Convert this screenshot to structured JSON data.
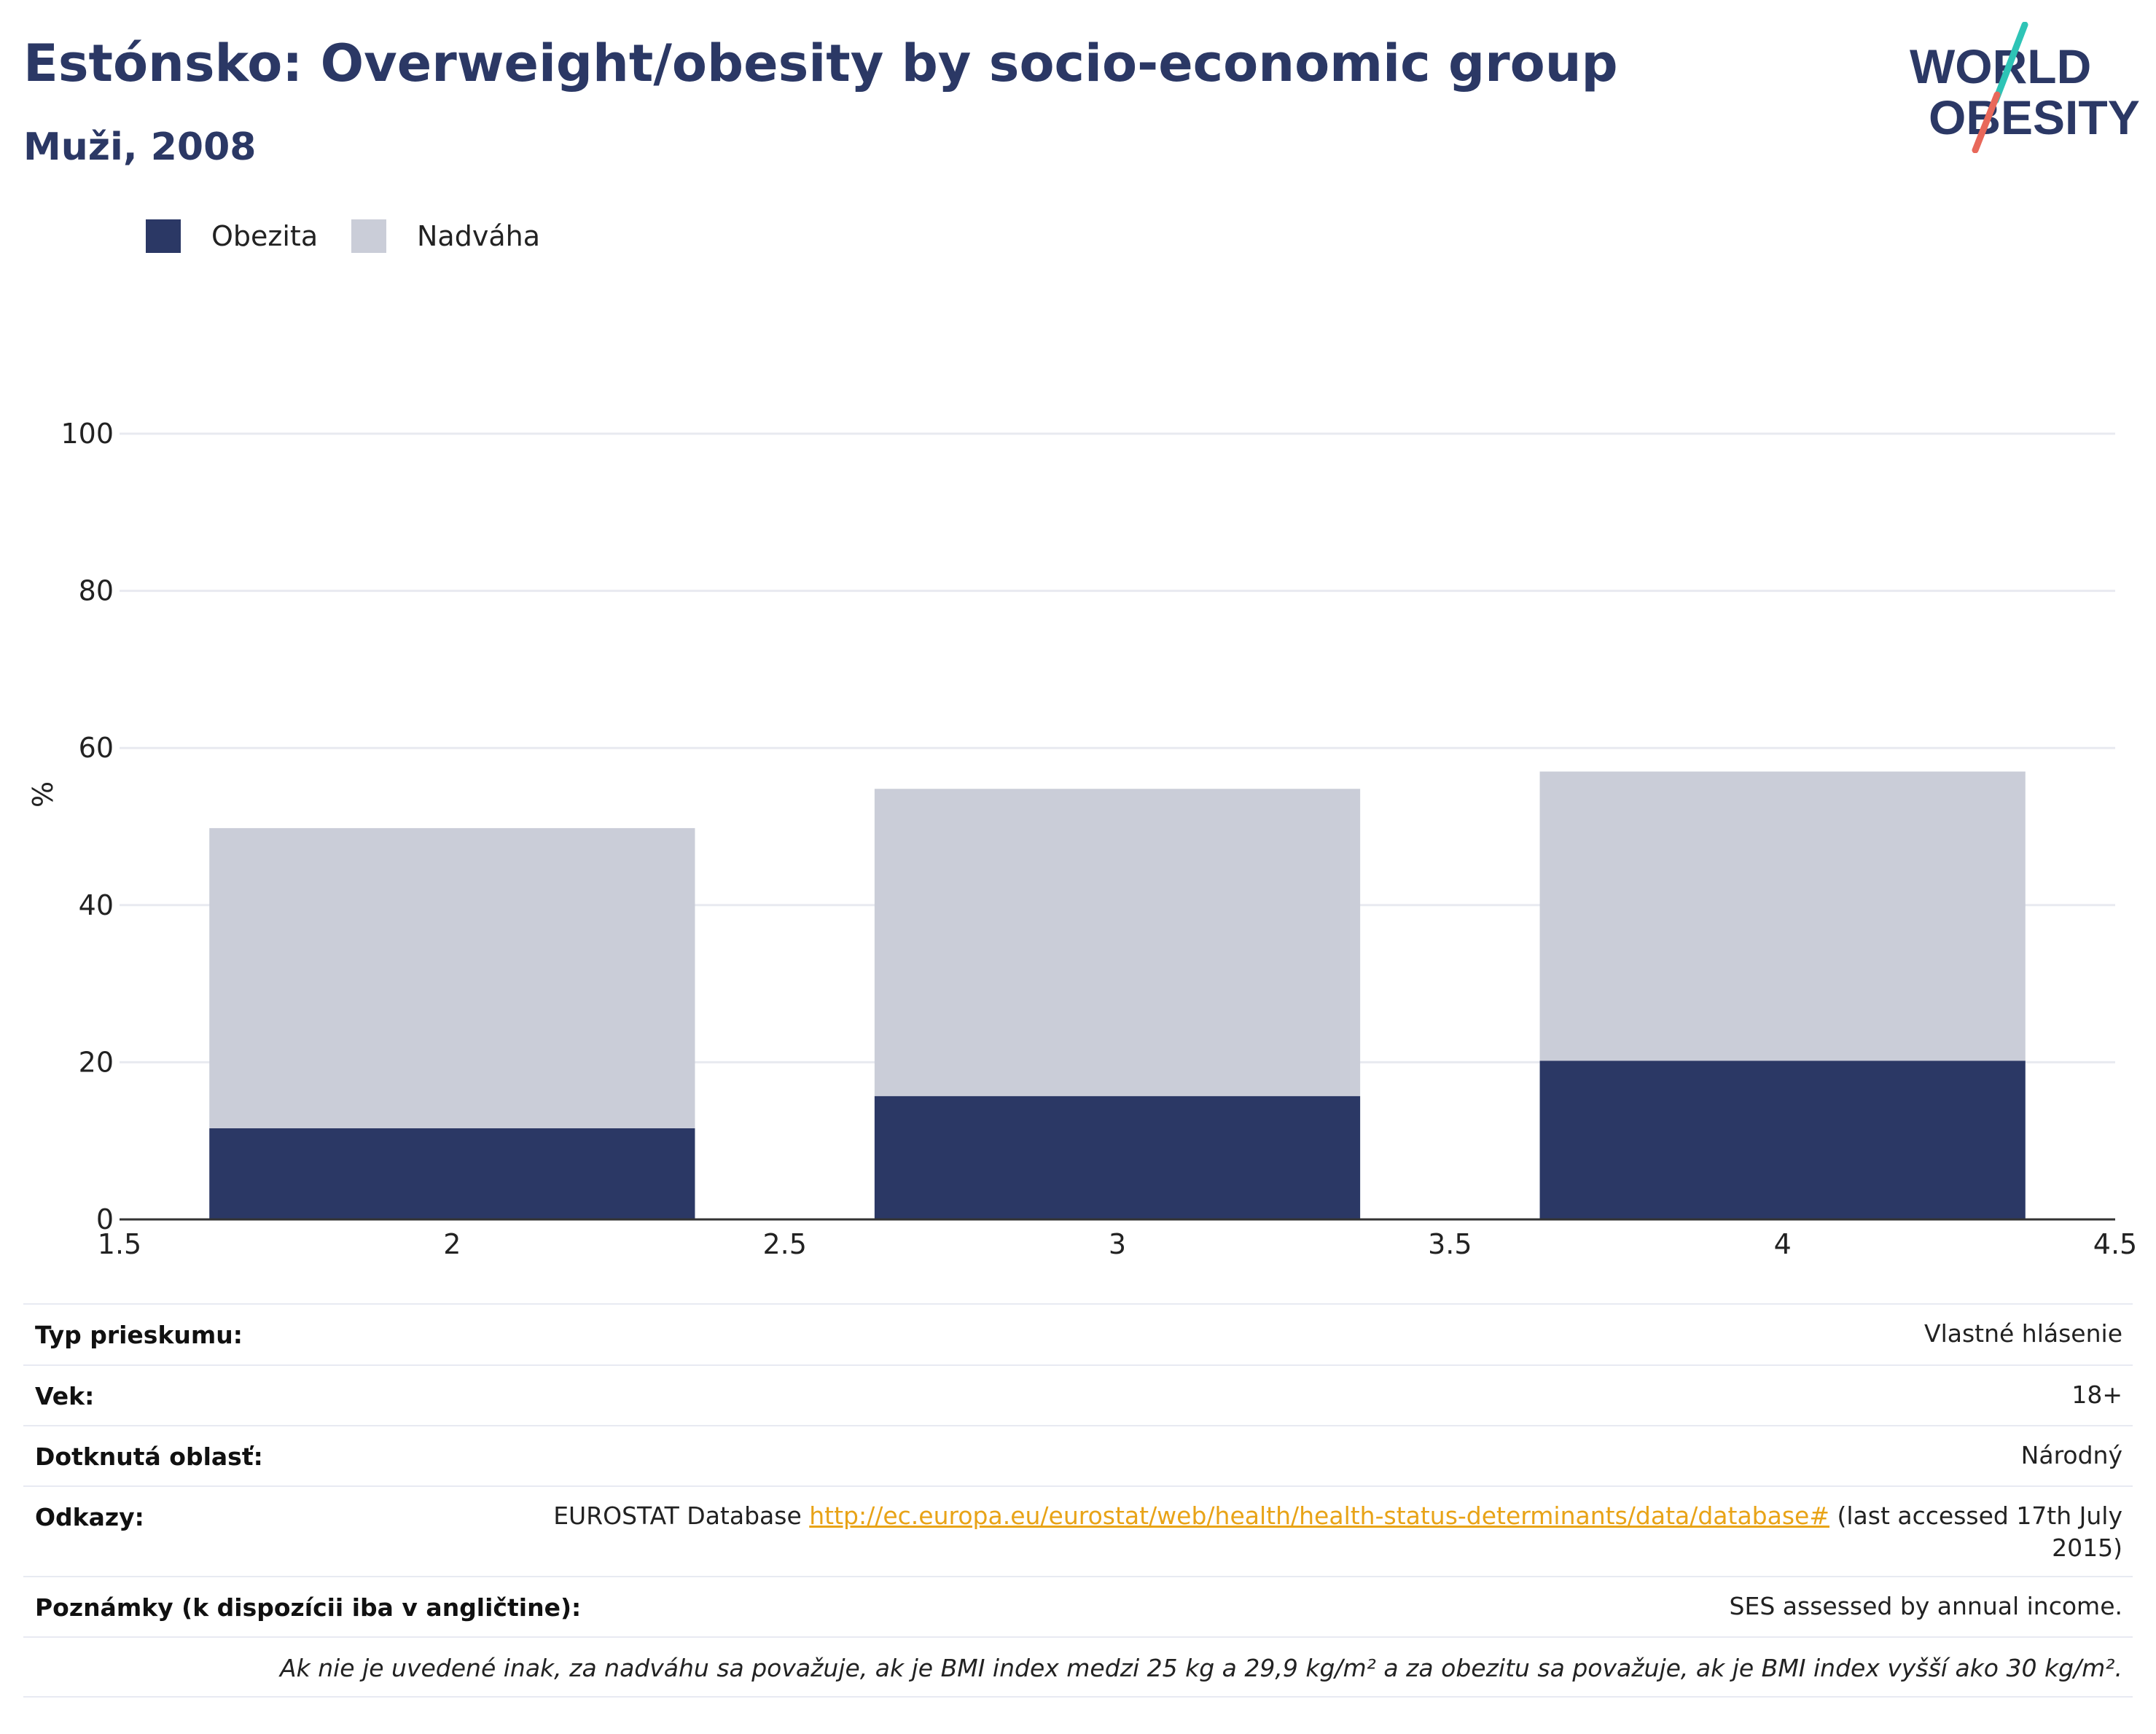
{
  "header": {
    "title": "Estónsko: Overweight/obesity by socio-economic group",
    "subtitle": "Muži, 2008"
  },
  "logo": {
    "line1": "WORLD",
    "line2": "OBESITY",
    "colors": {
      "text": "#2b3865",
      "slash_top": "#2ec4b6",
      "slash_bottom": "#e8685a"
    }
  },
  "colors": {
    "obesity": "#2b3865",
    "overweight": "#cacdd8",
    "grid": "#e8eaf0",
    "axis": "#333333",
    "link": "#e8a317"
  },
  "chart_data": {
    "type": "bar",
    "stacked": true,
    "title": "Estónsko: Overweight/obesity by socio-economic group",
    "subtitle": "Muži, 2008",
    "x": [
      2,
      3,
      4
    ],
    "bar_width": 0.73,
    "xlim": [
      1.5,
      4.5
    ],
    "xticks": [
      1.5,
      2,
      2.5,
      3,
      3.5,
      4,
      4.5
    ],
    "xtick_labels": [
      "1.5",
      "2",
      "2.5",
      "3",
      "3.5",
      "4",
      "4.5"
    ],
    "ylim": [
      0,
      100
    ],
    "yticks": [
      0,
      20,
      40,
      60,
      80,
      100
    ],
    "ylabel": "%",
    "xlabel": "",
    "grid": true,
    "legend_position": "top-left",
    "series": [
      {
        "name": "Obezita",
        "color": "#2b3865",
        "values": [
          11.6,
          15.7,
          20.2
        ]
      },
      {
        "name": "Nadváha",
        "color": "#cacdd8",
        "values": [
          38.2,
          39.1,
          36.8
        ]
      }
    ]
  },
  "meta": {
    "survey_type": {
      "label": "Typ prieskumu:",
      "value": "Vlastné hlásenie"
    },
    "age": {
      "label": "Vek:",
      "value": "18+"
    },
    "area": {
      "label": "Dotknutá oblasť:",
      "value": "Národný"
    },
    "references": {
      "label": "Odkazy:",
      "prefix": "EUROSTAT Database ",
      "url": "http://ec.europa.eu/eurostat/web/health/health-status-determinants/data/database#",
      "suffix_line1": " (last accessed 17th July",
      "suffix_line2": "2015)"
    },
    "notes": {
      "label": "Poznámky (k dispozícii iba v angličtine):",
      "value": "SES assessed by annual income."
    },
    "footnote": "Ak nie je uvedené inak, za nadváhu sa považuje, ak je BMI index medzi 25 kg a 29,9 kg/m² a za obezitu sa považuje, ak je BMI index vyšší ako 30 kg/m²."
  }
}
